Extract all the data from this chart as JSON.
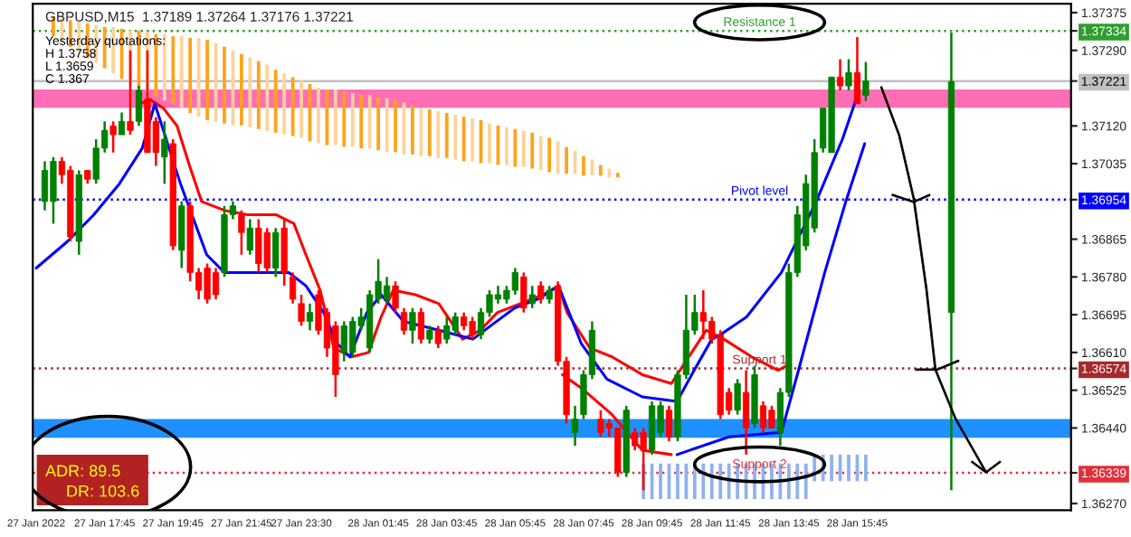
{
  "chart_data": {
    "type": "candlestick",
    "title": "GBPUSD,M15  1.37189 1.37264 1.37176 1.37221",
    "annotations": [
      "Yesterday quotations:",
      "H 1.3758",
      "L 1.3659",
      "C 1.367",
      "ADR: 89.5",
      "DR: 103.6"
    ],
    "x": [
      "2022-01-27T16:00",
      "2022-01-27T16:15",
      "2022-01-27T16:30",
      "2022-01-27T16:45",
      "2022-01-27T17:00",
      "2022-01-27T17:15",
      "2022-01-27T17:30",
      "2022-01-27T17:45",
      "2022-01-27T18:00",
      "2022-01-27T18:15",
      "2022-01-27T18:30",
      "2022-01-27T18:45",
      "2022-01-27T19:00",
      "2022-01-27T19:15",
      "2022-01-27T19:30",
      "2022-01-27T19:45",
      "2022-01-27T20:00",
      "2022-01-27T20:15",
      "2022-01-27T20:30",
      "2022-01-27T20:45",
      "2022-01-27T21:00",
      "2022-01-27T21:15",
      "2022-01-27T21:30",
      "2022-01-27T21:45",
      "2022-01-27T22:00",
      "2022-01-27T22:15",
      "2022-01-27T22:30",
      "2022-01-27T22:45",
      "2022-01-27T23:00",
      "2022-01-27T23:15",
      "2022-01-27T23:30",
      "2022-01-27T23:45",
      "2022-01-28T00:00",
      "2022-01-28T00:15",
      "2022-01-28T00:30",
      "2022-01-28T00:45",
      "2022-01-28T01:00",
      "2022-01-28T01:15",
      "2022-01-28T01:30",
      "2022-01-28T01:45",
      "2022-01-28T02:00",
      "2022-01-28T02:15",
      "2022-01-28T02:30",
      "2022-01-28T02:45",
      "2022-01-28T03:00",
      "2022-01-28T03:15",
      "2022-01-28T03:30",
      "2022-01-28T03:45",
      "2022-01-28T04:00",
      "2022-01-28T04:15",
      "2022-01-28T04:30",
      "2022-01-28T04:45",
      "2022-01-28T05:00",
      "2022-01-28T05:15",
      "2022-01-28T05:30",
      "2022-01-28T05:45",
      "2022-01-28T06:00",
      "2022-01-28T06:15",
      "2022-01-28T06:30",
      "2022-01-28T06:45",
      "2022-01-28T07:00",
      "2022-01-28T07:15",
      "2022-01-28T07:30",
      "2022-01-28T07:45",
      "2022-01-28T08:00",
      "2022-01-28T08:15",
      "2022-01-28T08:30",
      "2022-01-28T08:45",
      "2022-01-28T09:00",
      "2022-01-28T09:15",
      "2022-01-28T09:30",
      "2022-01-28T09:45",
      "2022-01-28T10:00",
      "2022-01-28T10:15",
      "2022-01-28T10:30",
      "2022-01-28T10:45",
      "2022-01-28T11:00",
      "2022-01-28T11:15",
      "2022-01-28T11:30",
      "2022-01-28T11:45",
      "2022-01-28T12:00",
      "2022-01-28T12:15",
      "2022-01-28T12:30",
      "2022-01-28T12:45",
      "2022-01-28T13:00",
      "2022-01-28T13:15",
      "2022-01-28T13:30",
      "2022-01-28T13:45",
      "2022-01-28T14:00",
      "2022-01-28T14:15",
      "2022-01-28T14:30",
      "2022-01-28T14:45",
      "2022-01-28T15:00",
      "2022-01-28T15:15",
      "2022-01-28T15:30",
      "2022-01-28T15:45",
      "2022-01-28T16:00",
      "2022-01-28T18:30"
    ],
    "ohlc": [
      [
        1.3695,
        1.3704,
        1.3693,
        1.3702
      ],
      [
        1.3695,
        1.3705,
        1.369,
        1.3704
      ],
      [
        1.3704,
        1.3705,
        1.3699,
        1.3701
      ],
      [
        1.3702,
        1.3703,
        1.3686,
        1.3687
      ],
      [
        1.3686,
        1.3702,
        1.3683,
        1.3701
      ],
      [
        1.3702,
        1.3702,
        1.3699,
        1.37
      ],
      [
        1.37,
        1.3709,
        1.3699,
        1.3707
      ],
      [
        1.3707,
        1.3713,
        1.3706,
        1.3711
      ],
      [
        1.3712,
        1.3713,
        1.3706,
        1.371
      ],
      [
        1.371,
        1.3715,
        1.371,
        1.3713
      ],
      [
        1.3713,
        1.3729,
        1.371,
        1.3711
      ],
      [
        1.3713,
        1.3721,
        1.3712,
        1.372
      ],
      [
        1.3718,
        1.3729,
        1.3706,
        1.3706
      ],
      [
        1.3713,
        1.3714,
        1.3703,
        1.3706
      ],
      [
        1.3705,
        1.3713,
        1.3699,
        1.3709
      ],
      [
        1.3708,
        1.3709,
        1.3684,
        1.3685
      ],
      [
        1.3684,
        1.3695,
        1.368,
        1.3694
      ],
      [
        1.3694,
        1.3695,
        1.3677,
        1.3679
      ],
      [
        1.3679,
        1.368,
        1.3673,
        1.3675
      ],
      [
        1.368,
        1.3681,
        1.3672,
        1.3673
      ],
      [
        1.3679,
        1.368,
        1.3673,
        1.3674
      ],
      [
        1.3679,
        1.3694,
        1.3678,
        1.3692
      ],
      [
        1.3692,
        1.3695,
        1.3691,
        1.3694
      ],
      [
        1.3692,
        1.3693,
        1.3683,
        1.3688
      ],
      [
        1.3684,
        1.3691,
        1.3683,
        1.3689
      ],
      [
        1.3689,
        1.3691,
        1.3679,
        1.3681
      ],
      [
        1.3688,
        1.3689,
        1.3679,
        1.368
      ],
      [
        1.368,
        1.3689,
        1.3678,
        1.3688
      ],
      [
        1.3689,
        1.3691,
        1.3676,
        1.3679
      ],
      [
        1.3678,
        1.3679,
        1.3672,
        1.3673
      ],
      [
        1.3672,
        1.3674,
        1.3667,
        1.3668
      ],
      [
        1.3668,
        1.3672,
        1.3666,
        1.367
      ],
      [
        1.3674,
        1.3675,
        1.3665,
        1.3666
      ],
      [
        1.367,
        1.3671,
        1.366,
        1.3662
      ],
      [
        1.3667,
        1.3668,
        1.3651,
        1.3656
      ],
      [
        1.3661,
        1.3668,
        1.3659,
        1.3667
      ],
      [
        1.3661,
        1.3669,
        1.366,
        1.3668
      ],
      [
        1.3667,
        1.3671,
        1.3666,
        1.3669
      ],
      [
        1.3662,
        1.3675,
        1.3661,
        1.3674
      ],
      [
        1.3673,
        1.3682,
        1.3672,
        1.3677
      ],
      [
        1.3673,
        1.3678,
        1.3672,
        1.3676
      ],
      [
        1.3676,
        1.3677,
        1.367,
        1.3671
      ],
      [
        1.367,
        1.3671,
        1.3665,
        1.3666
      ],
      [
        1.3666,
        1.3671,
        1.3663,
        1.367
      ],
      [
        1.367,
        1.3671,
        1.3663,
        1.3664
      ],
      [
        1.3664,
        1.3667,
        1.3663,
        1.3666
      ],
      [
        1.3666,
        1.3667,
        1.3662,
        1.3663
      ],
      [
        1.3664,
        1.3669,
        1.3663,
        1.3667
      ],
      [
        1.3666,
        1.367,
        1.3665,
        1.3669
      ],
      [
        1.3669,
        1.367,
        1.3666,
        1.3667
      ],
      [
        1.3668,
        1.3669,
        1.3664,
        1.3665
      ],
      [
        1.3665,
        1.3671,
        1.3664,
        1.367
      ],
      [
        1.367,
        1.3675,
        1.3669,
        1.3674
      ],
      [
        1.3673,
        1.3676,
        1.3672,
        1.3674
      ],
      [
        1.3673,
        1.3676,
        1.3672,
        1.3675
      ],
      [
        1.3675,
        1.368,
        1.3674,
        1.3679
      ],
      [
        1.3678,
        1.3679,
        1.367,
        1.3671
      ],
      [
        1.3672,
        1.3676,
        1.3671,
        1.3674
      ],
      [
        1.3676,
        1.3677,
        1.3672,
        1.3673
      ],
      [
        1.3673,
        1.3676,
        1.3672,
        1.3675
      ],
      [
        1.3676,
        1.3677,
        1.3658,
        1.3659
      ],
      [
        1.3659,
        1.366,
        1.3645,
        1.3647
      ],
      [
        1.3643,
        1.3649,
        1.364,
        1.3646
      ],
      [
        1.3647,
        1.3657,
        1.3646,
        1.3656
      ],
      [
        1.3656,
        1.3668,
        1.3655,
        1.3666
      ],
      [
        1.3646,
        1.3648,
        1.3642,
        1.3643
      ],
      [
        1.3645,
        1.3646,
        1.3642,
        1.3644
      ],
      [
        1.3644,
        1.3644,
        1.3633,
        1.3634
      ],
      [
        1.3634,
        1.3649,
        1.3633,
        1.3648
      ],
      [
        1.3643,
        1.3644,
        1.3639,
        1.364
      ],
      [
        1.3643,
        1.3644,
        1.363,
        1.3639
      ],
      [
        1.3639,
        1.365,
        1.3638,
        1.3649
      ],
      [
        1.3643,
        1.365,
        1.3642,
        1.3649
      ],
      [
        1.3648,
        1.3649,
        1.3641,
        1.3642
      ],
      [
        1.3642,
        1.3657,
        1.3641,
        1.3656
      ],
      [
        1.3656,
        1.3674,
        1.3655,
        1.3666
      ],
      [
        1.3666,
        1.3674,
        1.3665,
        1.367
      ],
      [
        1.367,
        1.3675,
        1.3664,
        1.3668
      ],
      [
        1.3668,
        1.3669,
        1.3663,
        1.3664
      ],
      [
        1.3665,
        1.3666,
        1.3646,
        1.3647
      ],
      [
        1.3652,
        1.3653,
        1.3647,
        1.3648
      ],
      [
        1.3648,
        1.3655,
        1.3647,
        1.3654
      ],
      [
        1.3652,
        1.3657,
        1.3638,
        1.3644
      ],
      [
        1.3645,
        1.3658,
        1.3644,
        1.3656
      ],
      [
        1.3649,
        1.365,
        1.3643,
        1.3644
      ],
      [
        1.3648,
        1.3649,
        1.3644,
        1.3644
      ],
      [
        1.3643,
        1.3653,
        1.364,
        1.3652
      ],
      [
        1.3652,
        1.3681,
        1.3651,
        1.3679
      ],
      [
        1.3679,
        1.3694,
        1.3678,
        1.3692
      ],
      [
        1.3685,
        1.3701,
        1.3684,
        1.3699
      ],
      [
        1.3689,
        1.3709,
        1.3688,
        1.3706
      ],
      [
        1.3707,
        1.3716,
        1.3706,
        1.3716
      ],
      [
        1.3706,
        1.3723,
        1.3706,
        1.3723
      ],
      [
        1.3723,
        1.3727,
        1.372,
        1.3721
      ],
      [
        1.3721,
        1.3727,
        1.372,
        1.3724
      ],
      [
        1.3724,
        1.3732,
        1.3717,
        1.3717
      ],
      [
        1.37189,
        1.37264,
        1.37176,
        1.37221
      ],
      [
        1.367,
        1.3733,
        1.363,
        1.3722
      ]
    ],
    "colors": [
      "#008000",
      "#008000",
      "#ff0000",
      "#ff0000",
      "#008000",
      "#ff0000",
      "#008000",
      "#008000",
      "#ff0000",
      "#008000",
      "#ff0000",
      "#008000",
      "#ff0000",
      "#ff0000",
      "#008000",
      "#ff0000",
      "#008000",
      "#ff0000",
      "#ff0000",
      "#ff0000",
      "#ff0000",
      "#008000",
      "#008000",
      "#ff0000",
      "#008000",
      "#ff0000",
      "#ff0000",
      "#008000",
      "#ff0000",
      "#ff0000",
      "#ff0000",
      "#008000",
      "#ff0000",
      "#ff0000",
      "#ff0000",
      "#008000",
      "#008000",
      "#008000",
      "#008000",
      "#008000",
      "#008000",
      "#ff0000",
      "#ff0000",
      "#008000",
      "#ff0000",
      "#008000",
      "#ff0000",
      "#008000",
      "#008000",
      "#ff0000",
      "#ff0000",
      "#008000",
      "#008000",
      "#008000",
      "#008000",
      "#008000",
      "#ff0000",
      "#008000",
      "#ff0000",
      "#008000",
      "#ff0000",
      "#ff0000",
      "#008000",
      "#008000",
      "#008000",
      "#ff0000",
      "#ff0000",
      "#ff0000",
      "#008000",
      "#ff0000",
      "#ff0000",
      "#008000",
      "#008000",
      "#ff0000",
      "#008000",
      "#008000",
      "#008000",
      "#ff0000",
      "#ff0000",
      "#ff0000",
      "#ff0000",
      "#008000",
      "#ff0000",
      "#008000",
      "#ff0000",
      "#ff0000",
      "#008000",
      "#008000",
      "#008000",
      "#008000",
      "#008000",
      "#008000",
      "#008000",
      "#ff0000",
      "#008000",
      "#ff0000",
      "#008000",
      "#008000"
    ],
    "series": [
      {
        "type": "bar",
        "x": [
          "2022-01-27T16:15",
          "2022-01-27T16:30",
          "2022-01-27T16:45",
          "2022-01-27T17:00",
          "2022-01-27T17:15",
          "2022-01-27T17:30",
          "2022-01-27T17:45",
          "2022-01-27T18:00",
          "2022-01-27T18:15",
          "2022-01-27T18:30",
          "2022-01-27T18:45",
          "2022-01-27T19:00",
          "2022-01-27T19:15",
          "2022-01-27T19:30",
          "2022-01-27T19:45",
          "2022-01-27T20:00",
          "2022-01-27T20:15",
          "2022-01-27T20:30",
          "2022-01-27T20:45",
          "2022-01-27T21:00",
          "2022-01-27T21:15",
          "2022-01-27T21:30",
          "2022-01-27T21:45",
          "2022-01-27T22:00",
          "2022-01-27T22:15",
          "2022-01-27T22:30",
          "2022-01-27T22:45",
          "2022-01-27T23:00",
          "2022-01-27T23:15",
          "2022-01-27T23:30",
          "2022-01-27T23:45",
          "2022-01-28T00:00",
          "2022-01-28T00:15",
          "2022-01-28T00:30",
          "2022-01-28T00:45",
          "2022-01-28T01:00",
          "2022-01-28T01:15",
          "2022-01-28T01:30",
          "2022-01-28T01:45",
          "2022-01-28T02:00",
          "2022-01-28T02:15",
          "2022-01-28T02:30",
          "2022-01-28T02:45",
          "2022-01-28T03:00",
          "2022-01-28T03:15",
          "2022-01-28T03:30",
          "2022-01-28T03:45",
          "2022-01-28T04:00",
          "2022-01-28T04:15",
          "2022-01-28T04:30",
          "2022-01-28T04:45",
          "2022-01-28T05:00",
          "2022-01-28T05:15",
          "2022-01-28T05:30",
          "2022-01-28T05:45",
          "2022-01-28T06:00",
          "2022-01-28T06:15",
          "2022-01-28T06:30",
          "2022-01-28T06:45",
          "2022-01-28T07:00",
          "2022-01-28T07:15",
          "2022-01-28T07:30",
          "2022-01-28T07:45",
          "2022-01-28T08:00",
          "2022-01-28T08:15",
          "2022-01-28T08:30",
          "2022-01-28T08:45"
        ],
        "base": [
          1.37322,
          1.3731,
          1.37298,
          1.37286,
          1.37274,
          1.37262,
          1.3725,
          1.37238,
          1.37226,
          1.37214,
          1.37206,
          1.37198,
          1.37185,
          1.37177,
          1.37169,
          1.37161,
          1.37149,
          1.37141,
          1.37133,
          1.37129,
          1.37125,
          1.37121,
          1.37121,
          1.37117,
          1.37113,
          1.37109,
          1.37105,
          1.37101,
          1.37097,
          1.37093,
          1.37085,
          1.37081,
          1.37077,
          1.37077,
          1.37073,
          1.37073,
          1.37069,
          1.37069,
          1.37065,
          1.37061,
          1.37061,
          1.37056,
          1.37056,
          1.37052,
          1.37052,
          1.37048,
          1.37048,
          1.37044,
          1.3704,
          1.3704,
          1.37036,
          1.37036,
          1.37032,
          1.37032,
          1.37028,
          1.37028,
          1.37024,
          1.3702,
          1.37016,
          1.37012,
          1.37012,
          1.37012,
          1.37008,
          1.37008,
          1.37008,
          1.37004,
          1.37004
        ],
        "values": [
          0.00044,
          0.00052,
          0.0006,
          0.00069,
          0.00077,
          0.00085,
          0.00093,
          0.00105,
          0.00113,
          0.00121,
          0.00129,
          0.00133,
          0.00141,
          0.00149,
          0.00153,
          0.00161,
          0.00169,
          0.00177,
          0.00181,
          0.00177,
          0.00173,
          0.00169,
          0.00161,
          0.00157,
          0.00153,
          0.00149,
          0.00141,
          0.00137,
          0.00133,
          0.00129,
          0.00129,
          0.00125,
          0.00125,
          0.00125,
          0.00125,
          0.00121,
          0.00121,
          0.00121,
          0.00121,
          0.00121,
          0.00117,
          0.00117,
          0.00109,
          0.00109,
          0.00105,
          0.00105,
          0.00101,
          0.00101,
          0.00101,
          0.00097,
          0.00097,
          0.00089,
          0.00089,
          0.00085,
          0.00085,
          0.00081,
          0.00081,
          0.00077,
          0.00077,
          0.00073,
          0.0006,
          0.00052,
          0.00044,
          0.00036,
          0.00024,
          0.0002,
          0.0001
        ],
        "colors": [
          "#ffa31a",
          "#ffd29a",
          "#ffa31a",
          "#ffd29a",
          "#ffa31a",
          "#ffd29a",
          "#ffa31a",
          "#ffd29a",
          "#ffa31a",
          "#ffd29a",
          "#ffa31a",
          "#ffd29a",
          "#ffa31a",
          "#ffd29a",
          "#ffa31a",
          "#ffd29a",
          "#ffa31a",
          "#ffd29a",
          "#ffa31a",
          "#ffd29a",
          "#ffa31a",
          "#ffd29a",
          "#ffa31a",
          "#ffd29a",
          "#ffa31a",
          "#ffd29a",
          "#ffa31a",
          "#ffd29a",
          "#ffa31a",
          "#ffd29a",
          "#ffa31a",
          "#ffd29a",
          "#ffa31a",
          "#ffd29a",
          "#ffa31a",
          "#ffd29a",
          "#ffa31a",
          "#ffd29a",
          "#ffa31a",
          "#ffd29a",
          "#ffa31a",
          "#ffd29a",
          "#ffa31a",
          "#ffd29a",
          "#ffa31a",
          "#ffd29a",
          "#ffa31a",
          "#ffd29a",
          "#ffa31a",
          "#ffd29a",
          "#ffa31a",
          "#ffd29a",
          "#ffa31a",
          "#ffd29a",
          "#ffa31a",
          "#ffd29a",
          "#ffa31a",
          "#ffd29a",
          "#ffa31a",
          "#ffd29a",
          "#ffa31a",
          "#ffd29a",
          "#ffa31a",
          "#ffd29a",
          "#ffa31a",
          "#ffd29a",
          "#ffa31a"
        ]
      },
      {
        "type": "bar",
        "x": [
          "2022-01-28T09:30",
          "2022-01-28T09:45",
          "2022-01-28T10:00",
          "2022-01-28T10:15",
          "2022-01-28T10:30",
          "2022-01-28T10:45",
          "2022-01-28T11:00",
          "2022-01-28T11:15",
          "2022-01-28T11:30",
          "2022-01-28T11:45",
          "2022-01-28T12:00",
          "2022-01-28T12:15",
          "2022-01-28T12:30",
          "2022-01-28T12:45",
          "2022-01-28T13:00",
          "2022-01-28T13:15",
          "2022-01-28T13:30",
          "2022-01-28T13:45",
          "2022-01-28T14:00",
          "2022-01-28T14:15",
          "2022-01-28T14:30",
          "2022-01-28T14:45",
          "2022-01-28T15:00",
          "2022-01-28T15:15",
          "2022-01-28T15:30",
          "2022-01-28T15:45",
          "2022-01-28T16:00"
        ],
        "base": [
          1.3628,
          1.3628,
          1.3628,
          1.3628,
          1.3628,
          1.3628,
          1.3628,
          1.3628,
          1.3628,
          1.3628,
          1.3628,
          1.3628,
          1.3628,
          1.3628,
          1.3628,
          1.3628,
          1.3628,
          1.3628,
          1.3628,
          1.3628,
          1.3632,
          1.3632,
          1.3632,
          1.3632,
          1.3632,
          1.3632,
          1.3632
        ],
        "values": [
          0.0008,
          0.0008,
          0.0008,
          0.0008,
          0.0008,
          0.0008,
          0.0008,
          0.0008,
          0.0008,
          0.0008,
          0.0008,
          0.0008,
          0.0008,
          0.0008,
          0.0008,
          0.0008,
          0.0008,
          0.0008,
          0.0008,
          0.0008,
          0.0006,
          0.0006,
          0.0006,
          0.0006,
          0.0006,
          0.0006,
          0.0006
        ],
        "color": "#8fb2ee"
      },
      {
        "type": "line",
        "color": "#ff0000",
        "x": [
          "2022-01-27T18:48",
          "2022-01-27T19:04",
          "2022-01-27T19:28",
          "2022-01-27T19:52",
          "2022-01-27T20:14",
          "2022-01-27T20:35",
          "2022-01-27T21:15",
          "2022-01-27T21:55",
          "2022-01-27T22:46",
          "2022-01-27T23:17",
          "2022-01-27T23:38",
          "2022-01-28T00:03",
          "2022-01-28T00:27",
          "2022-01-28T00:58",
          "2022-01-28T01:28",
          "2022-01-28T01:50",
          "2022-01-28T02:11",
          "2022-01-28T02:50",
          "2022-01-28T03:31",
          "2022-01-28T04:13",
          "2022-01-28T04:44",
          "2022-01-28T05:14",
          "2022-01-28T05:54",
          "2022-01-28T06:34",
          "2022-01-28T07:01",
          "2022-01-28T07:16",
          "2022-01-28T07:56",
          "2022-01-28T08:35",
          "2022-01-28T09:28",
          "2022-01-28T10:19",
          "2022-01-28T11:20",
          "2022-01-28T11:51",
          "2022-01-28T12:40",
          "2022-01-28T13:26",
          "2022-01-28T13:41"
        ],
        "values": [
          1.3717,
          1.3718,
          1.3716,
          1.3712,
          1.3703,
          1.3695,
          1.3693,
          1.3692,
          1.3692,
          1.369,
          1.3683,
          1.3675,
          1.3662,
          1.366,
          1.3661,
          1.3669,
          1.3675,
          1.3674,
          1.3672,
          1.3664,
          1.3666,
          1.367,
          1.3672,
          1.3674,
          1.3676,
          1.367,
          1.3662,
          1.366,
          1.3656,
          1.3654,
          1.3666,
          1.3664,
          1.366,
          1.3657,
          1.3658
        ]
      },
      {
        "type": "line",
        "color": "#ff0000",
        "x": [
          "2022-01-28T07:08",
          "2022-01-28T07:41",
          "2022-01-28T08:35",
          "2022-01-28T09:28",
          "2022-01-28T10:19"
        ],
        "values": [
          1.3656,
          1.3653,
          1.3647,
          1.3639,
          1.3638
        ]
      },
      {
        "type": "line",
        "color": "#0000ff",
        "x": [
          "2022-01-27T15:45",
          "2022-01-27T16:40",
          "2022-01-27T17:26",
          "2022-01-27T18:11",
          "2022-01-27T18:51",
          "2022-01-27T19:13",
          "2022-01-27T19:58",
          "2022-01-27T20:44",
          "2022-01-27T21:15",
          "2022-01-27T23:08",
          "2022-01-27T23:38",
          "2022-01-28T00:09",
          "2022-01-28T00:33",
          "2022-01-28T00:55",
          "2022-01-28T01:25",
          "2022-01-28T01:50",
          "2022-01-28T02:29",
          "2022-01-28T03:31",
          "2022-01-28T04:31",
          "2022-01-28T05:02",
          "2022-01-28T05:44",
          "2022-01-28T06:25",
          "2022-01-28T07:01",
          "2022-01-28T07:41",
          "2022-01-28T08:26",
          "2022-01-28T09:28",
          "2022-01-28T10:29",
          "2022-01-28T10:59",
          "2022-01-28T11:30",
          "2022-01-28T11:45",
          "2022-01-28T12:31",
          "2022-01-28T13:32",
          "2022-01-28T14:33",
          "2022-01-28T15:19",
          "2022-01-28T15:43"
        ],
        "values": [
          1.368,
          1.3686,
          1.3692,
          1.3699,
          1.3707,
          1.3717,
          1.3699,
          1.3683,
          1.3679,
          1.3679,
          1.3676,
          1.367,
          1.3663,
          1.366,
          1.367,
          1.3674,
          1.3668,
          1.3666,
          1.3664,
          1.3667,
          1.3671,
          1.3673,
          1.3676,
          1.3663,
          1.3655,
          1.3651,
          1.365,
          1.3657,
          1.3664,
          1.3665,
          1.3669,
          1.3679,
          1.3695,
          1.3709,
          1.3718
        ]
      },
      {
        "type": "line",
        "color": "#0000ff",
        "x": [
          "2022-01-28T10:29",
          "2022-01-28T12:00",
          "2022-01-28T13:32",
          "2022-01-28T14:02",
          "2022-01-28T14:48",
          "2022-01-28T15:25",
          "2022-01-28T15:58"
        ],
        "values": [
          1.3638,
          1.3642,
          1.3643,
          1.3657,
          1.3679,
          1.3695,
          1.3708
        ]
      }
    ],
    "ref_lines": [
      {
        "axis": "y",
        "value": 1.37334,
        "label": "Resistance 1",
        "color": "#2e9e2e",
        "line_style": "dotted"
      },
      {
        "axis": "y",
        "value": 1.37221,
        "label": null,
        "color": "#c0c0c0",
        "line_style": "solid"
      },
      {
        "axis": "y",
        "value": 1.36954,
        "label": "Pivot level",
        "color": "#0000ff",
        "line_style": "dotted"
      },
      {
        "axis": "y",
        "value": 1.36574,
        "label": "Support 1",
        "color": "#a52a2a",
        "line_style": "dotted"
      },
      {
        "axis": "y",
        "value": 1.36339,
        "label": "Support 2",
        "color": "#e0303a",
        "line_style": "dotted"
      }
    ],
    "bands": [
      {
        "axis": "y",
        "from": 1.37161,
        "to": 1.37202,
        "color": "#ff6eb4"
      },
      {
        "axis": "y",
        "from": 1.36418,
        "to": 1.3646,
        "color": "#1e90ff"
      }
    ],
    "xlim": [
      "2022-01-27T15:39",
      "2022-01-28T22:00"
    ],
    "xticks": [
      {
        "value": "2022-01-27T15:45",
        "label": "27 Jan 2022"
      },
      {
        "value": "2022-01-27T17:45",
        "label": "27 Jan 17:45"
      },
      {
        "value": "2022-01-27T19:45",
        "label": "27 Jan 19:45"
      },
      {
        "value": "2022-01-27T21:45",
        "label": "27 Jan 21:45"
      },
      {
        "value": "2022-01-27T23:30",
        "label": "27 Jan 23:30"
      },
      {
        "value": "2022-01-28T01:45",
        "label": "28 Jan 01:45"
      },
      {
        "value": "2022-01-28T03:45",
        "label": "28 Jan 03:45"
      },
      {
        "value": "2022-01-28T05:45",
        "label": "28 Jan 05:45"
      },
      {
        "value": "2022-01-28T07:45",
        "label": "28 Jan 07:45"
      },
      {
        "value": "2022-01-28T09:45",
        "label": "28 Jan 09:45"
      },
      {
        "value": "2022-01-28T11:45",
        "label": "28 Jan 11:45"
      },
      {
        "value": "2022-01-28T13:45",
        "label": "28 Jan 13:45"
      },
      {
        "value": "2022-01-28T15:45",
        "label": "28 Jan 15:45"
      }
    ],
    "ylim": [
      1.36255,
      1.37395
    ],
    "yticks": [
      {
        "value": 1.3627,
        "label": "1.36270"
      },
      1.36339,
      {
        "value": 1.3644,
        "label": "1.36440"
      },
      1.36525,
      1.36574,
      {
        "value": 1.3661,
        "label": "1.36610"
      },
      1.36695,
      {
        "value": 1.3678,
        "label": "1.36780"
      },
      1.36865,
      1.36954,
      1.37035,
      {
        "value": 1.3712,
        "label": "1.37120"
      },
      1.37221,
      {
        "value": 1.3729,
        "label": "1.37290"
      },
      1.37334,
      1.37375
    ],
    "grid": false,
    "legend": false
  }
}
